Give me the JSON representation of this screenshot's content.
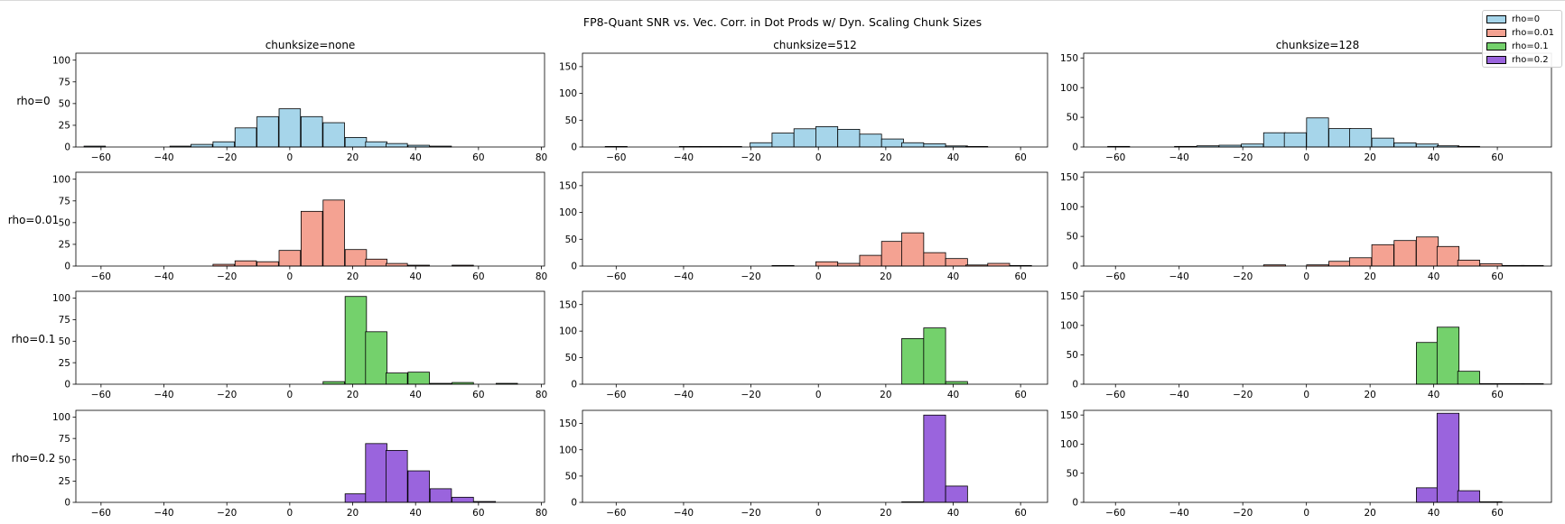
{
  "figure": {
    "title": "FP8-Quant SNR vs. Vec. Corr. in Dot Prods w/ Dyn. Scaling Chunk Sizes"
  },
  "legend": [
    {
      "label": "rho=0",
      "color": "#a6d5ea"
    },
    {
      "label": "rho=0.01",
      "color": "#f4a292"
    },
    {
      "label": "rho=0.1",
      "color": "#74d16c"
    },
    {
      "label": "rho=0.2",
      "color": "#9a64dd"
    }
  ],
  "chart_data": [
    {
      "type": "bar",
      "title": "chunksize=none",
      "row_label": "rho=0",
      "color": "#a6d5ea",
      "xlim": [
        -68,
        81
      ],
      "ylim": [
        0,
        108
      ],
      "xticks": [
        -60,
        -40,
        -20,
        0,
        20,
        40,
        60,
        80
      ],
      "yticks": [
        0,
        25,
        50,
        75,
        100
      ],
      "bin_width": 6.8,
      "bins": [
        {
          "x": -62,
          "y": 1
        },
        {
          "x": -34.7,
          "y": 1
        },
        {
          "x": -28,
          "y": 3
        },
        {
          "x": -21,
          "y": 6
        },
        {
          "x": -14,
          "y": 22
        },
        {
          "x": -7,
          "y": 35
        },
        {
          "x": 0,
          "y": 44
        },
        {
          "x": 7,
          "y": 35
        },
        {
          "x": 14,
          "y": 28
        },
        {
          "x": 21,
          "y": 11
        },
        {
          "x": 27.5,
          "y": 6
        },
        {
          "x": 34,
          "y": 4
        },
        {
          "x": 41,
          "y": 2
        },
        {
          "x": 48,
          "y": 1
        }
      ]
    },
    {
      "type": "bar",
      "title": "chunksize=512",
      "row_label": "",
      "color": "#a6d5ea",
      "xlim": [
        -70,
        68
      ],
      "ylim": [
        0,
        175
      ],
      "xticks": [
        -60,
        -40,
        -20,
        0,
        20,
        40,
        60
      ],
      "yticks": [
        0,
        50,
        100,
        150
      ],
      "bin_width": 6.5,
      "bins": [
        {
          "x": -60,
          "y": 1
        },
        {
          "x": -38,
          "y": 1
        },
        {
          "x": -32,
          "y": 1
        },
        {
          "x": -26,
          "y": 1
        },
        {
          "x": -17,
          "y": 8
        },
        {
          "x": -10.5,
          "y": 26
        },
        {
          "x": -4,
          "y": 34
        },
        {
          "x": 2.5,
          "y": 38
        },
        {
          "x": 9,
          "y": 33
        },
        {
          "x": 15.5,
          "y": 24
        },
        {
          "x": 22,
          "y": 15
        },
        {
          "x": 28,
          "y": 8
        },
        {
          "x": 34.5,
          "y": 6
        },
        {
          "x": 41,
          "y": 2
        },
        {
          "x": 47,
          "y": 1
        }
      ]
    },
    {
      "type": "bar",
      "title": "chunksize=128",
      "row_label": "",
      "color": "#a6d5ea",
      "xlim": [
        -70,
        77
      ],
      "ylim": [
        0,
        158
      ],
      "xticks": [
        -60,
        -40,
        -20,
        0,
        20,
        40,
        60
      ],
      "yticks": [
        0,
        50,
        100,
        150
      ],
      "bin_width": 6.9,
      "bins": [
        {
          "x": -59,
          "y": 1
        },
        {
          "x": -38,
          "y": 1
        },
        {
          "x": -31,
          "y": 2
        },
        {
          "x": -24,
          "y": 3
        },
        {
          "x": -17,
          "y": 5
        },
        {
          "x": -10,
          "y": 24
        },
        {
          "x": -3.5,
          "y": 24
        },
        {
          "x": 3.5,
          "y": 49
        },
        {
          "x": 10.5,
          "y": 31
        },
        {
          "x": 17,
          "y": 31
        },
        {
          "x": 24,
          "y": 15
        },
        {
          "x": 31,
          "y": 7
        },
        {
          "x": 38,
          "y": 5
        },
        {
          "x": 44.5,
          "y": 2
        },
        {
          "x": 51,
          "y": 1
        }
      ]
    },
    {
      "type": "bar",
      "title": "",
      "row_label": "rho=0.01",
      "color": "#f4a292",
      "xlim": [
        -68,
        81
      ],
      "ylim": [
        0,
        108
      ],
      "xticks": [
        -60,
        -40,
        -20,
        0,
        20,
        40,
        60,
        80
      ],
      "yticks": [
        0,
        25,
        50,
        75,
        100
      ],
      "bin_width": 6.8,
      "bins": [
        {
          "x": -21,
          "y": 2
        },
        {
          "x": -14,
          "y": 6
        },
        {
          "x": -7,
          "y": 5
        },
        {
          "x": 0,
          "y": 18
        },
        {
          "x": 7,
          "y": 63
        },
        {
          "x": 14,
          "y": 76
        },
        {
          "x": 21,
          "y": 19
        },
        {
          "x": 27.5,
          "y": 8
        },
        {
          "x": 34,
          "y": 3
        },
        {
          "x": 41,
          "y": 1
        },
        {
          "x": 55,
          "y": 1
        }
      ]
    },
    {
      "type": "bar",
      "title": "",
      "row_label": "",
      "color": "#f4a292",
      "xlim": [
        -70,
        68
      ],
      "ylim": [
        0,
        175
      ],
      "xticks": [
        -60,
        -40,
        -20,
        0,
        20,
        40,
        60
      ],
      "yticks": [
        0,
        50,
        100,
        150
      ],
      "bin_width": 6.5,
      "bins": [
        {
          "x": -10.5,
          "y": 1
        },
        {
          "x": 2.5,
          "y": 8
        },
        {
          "x": 9,
          "y": 5
        },
        {
          "x": 15.5,
          "y": 20
        },
        {
          "x": 22,
          "y": 46
        },
        {
          "x": 28,
          "y": 62
        },
        {
          "x": 34.5,
          "y": 25
        },
        {
          "x": 41,
          "y": 14
        },
        {
          "x": 47,
          "y": 2
        },
        {
          "x": 53.5,
          "y": 5
        },
        {
          "x": 60,
          "y": 1
        }
      ]
    },
    {
      "type": "bar",
      "title": "",
      "row_label": "",
      "color": "#f4a292",
      "xlim": [
        -70,
        77
      ],
      "ylim": [
        0,
        158
      ],
      "xticks": [
        -60,
        -40,
        -20,
        0,
        20,
        40,
        60
      ],
      "yticks": [
        0,
        50,
        100,
        150
      ],
      "bin_width": 6.9,
      "bins": [
        {
          "x": -10,
          "y": 2
        },
        {
          "x": 3.5,
          "y": 2
        },
        {
          "x": 10.5,
          "y": 8
        },
        {
          "x": 17,
          "y": 14
        },
        {
          "x": 24,
          "y": 36
        },
        {
          "x": 31,
          "y": 43
        },
        {
          "x": 38,
          "y": 49
        },
        {
          "x": 44.5,
          "y": 33
        },
        {
          "x": 51,
          "y": 10
        },
        {
          "x": 58,
          "y": 4
        },
        {
          "x": 65,
          "y": 1
        },
        {
          "x": 71,
          "y": 1
        }
      ]
    },
    {
      "type": "bar",
      "title": "",
      "row_label": "rho=0.1",
      "color": "#74d16c",
      "xlim": [
        -68,
        81
      ],
      "ylim": [
        0,
        108
      ],
      "xticks": [
        -60,
        -40,
        -20,
        0,
        20,
        40,
        60,
        80
      ],
      "yticks": [
        0,
        25,
        50,
        75,
        100
      ],
      "bin_width": 6.8,
      "bins": [
        {
          "x": 14,
          "y": 3
        },
        {
          "x": 21,
          "y": 102
        },
        {
          "x": 27.5,
          "y": 61
        },
        {
          "x": 34,
          "y": 13
        },
        {
          "x": 41,
          "y": 14
        },
        {
          "x": 48,
          "y": 1
        },
        {
          "x": 55,
          "y": 2
        },
        {
          "x": 69,
          "y": 1
        }
      ]
    },
    {
      "type": "bar",
      "title": "",
      "row_label": "",
      "color": "#74d16c",
      "xlim": [
        -70,
        68
      ],
      "ylim": [
        0,
        175
      ],
      "xticks": [
        -60,
        -40,
        -20,
        0,
        20,
        40,
        60
      ],
      "yticks": [
        0,
        50,
        100,
        150
      ],
      "bin_width": 6.5,
      "bins": [
        {
          "x": 28,
          "y": 86
        },
        {
          "x": 34.5,
          "y": 106
        },
        {
          "x": 41,
          "y": 5
        }
      ]
    },
    {
      "type": "bar",
      "title": "",
      "row_label": "",
      "color": "#74d16c",
      "xlim": [
        -70,
        77
      ],
      "ylim": [
        0,
        158
      ],
      "xticks": [
        -60,
        -40,
        -20,
        0,
        20,
        40,
        60
      ],
      "yticks": [
        0,
        50,
        100,
        150
      ],
      "bin_width": 6.9,
      "bins": [
        {
          "x": 38,
          "y": 71
        },
        {
          "x": 44.5,
          "y": 97
        },
        {
          "x": 51,
          "y": 22
        },
        {
          "x": 58,
          "y": 1
        },
        {
          "x": 65,
          "y": 1
        },
        {
          "x": 71,
          "y": 1
        }
      ]
    },
    {
      "type": "bar",
      "title": "",
      "row_label": "rho=0.2",
      "color": "#9a64dd",
      "xlim": [
        -68,
        81
      ],
      "ylim": [
        0,
        108
      ],
      "xticks": [
        -60,
        -40,
        -20,
        0,
        20,
        40,
        60,
        80
      ],
      "yticks": [
        0,
        25,
        50,
        75,
        100
      ],
      "bin_width": 6.8,
      "bins": [
        {
          "x": 21,
          "y": 10
        },
        {
          "x": 27.5,
          "y": 69
        },
        {
          "x": 34,
          "y": 61
        },
        {
          "x": 41,
          "y": 37
        },
        {
          "x": 48,
          "y": 16
        },
        {
          "x": 55,
          "y": 6
        },
        {
          "x": 62,
          "y": 1
        }
      ]
    },
    {
      "type": "bar",
      "title": "",
      "row_label": "",
      "color": "#9a64dd",
      "xlim": [
        -70,
        68
      ],
      "ylim": [
        0,
        175
      ],
      "xticks": [
        -60,
        -40,
        -20,
        0,
        20,
        40,
        60
      ],
      "yticks": [
        0,
        50,
        100,
        150
      ],
      "bin_width": 6.5,
      "bins": [
        {
          "x": 28,
          "y": 1
        },
        {
          "x": 34.5,
          "y": 166
        },
        {
          "x": 41,
          "y": 31
        }
      ]
    },
    {
      "type": "bar",
      "title": "",
      "row_label": "",
      "color": "#9a64dd",
      "xlim": [
        -70,
        77
      ],
      "ylim": [
        0,
        158
      ],
      "xticks": [
        -60,
        -40,
        -20,
        0,
        20,
        40,
        60
      ],
      "yticks": [
        0,
        50,
        100,
        150
      ],
      "bin_width": 6.9,
      "bins": [
        {
          "x": 38,
          "y": 25
        },
        {
          "x": 44.5,
          "y": 153
        },
        {
          "x": 51,
          "y": 20
        },
        {
          "x": 58,
          "y": 1
        }
      ]
    }
  ]
}
